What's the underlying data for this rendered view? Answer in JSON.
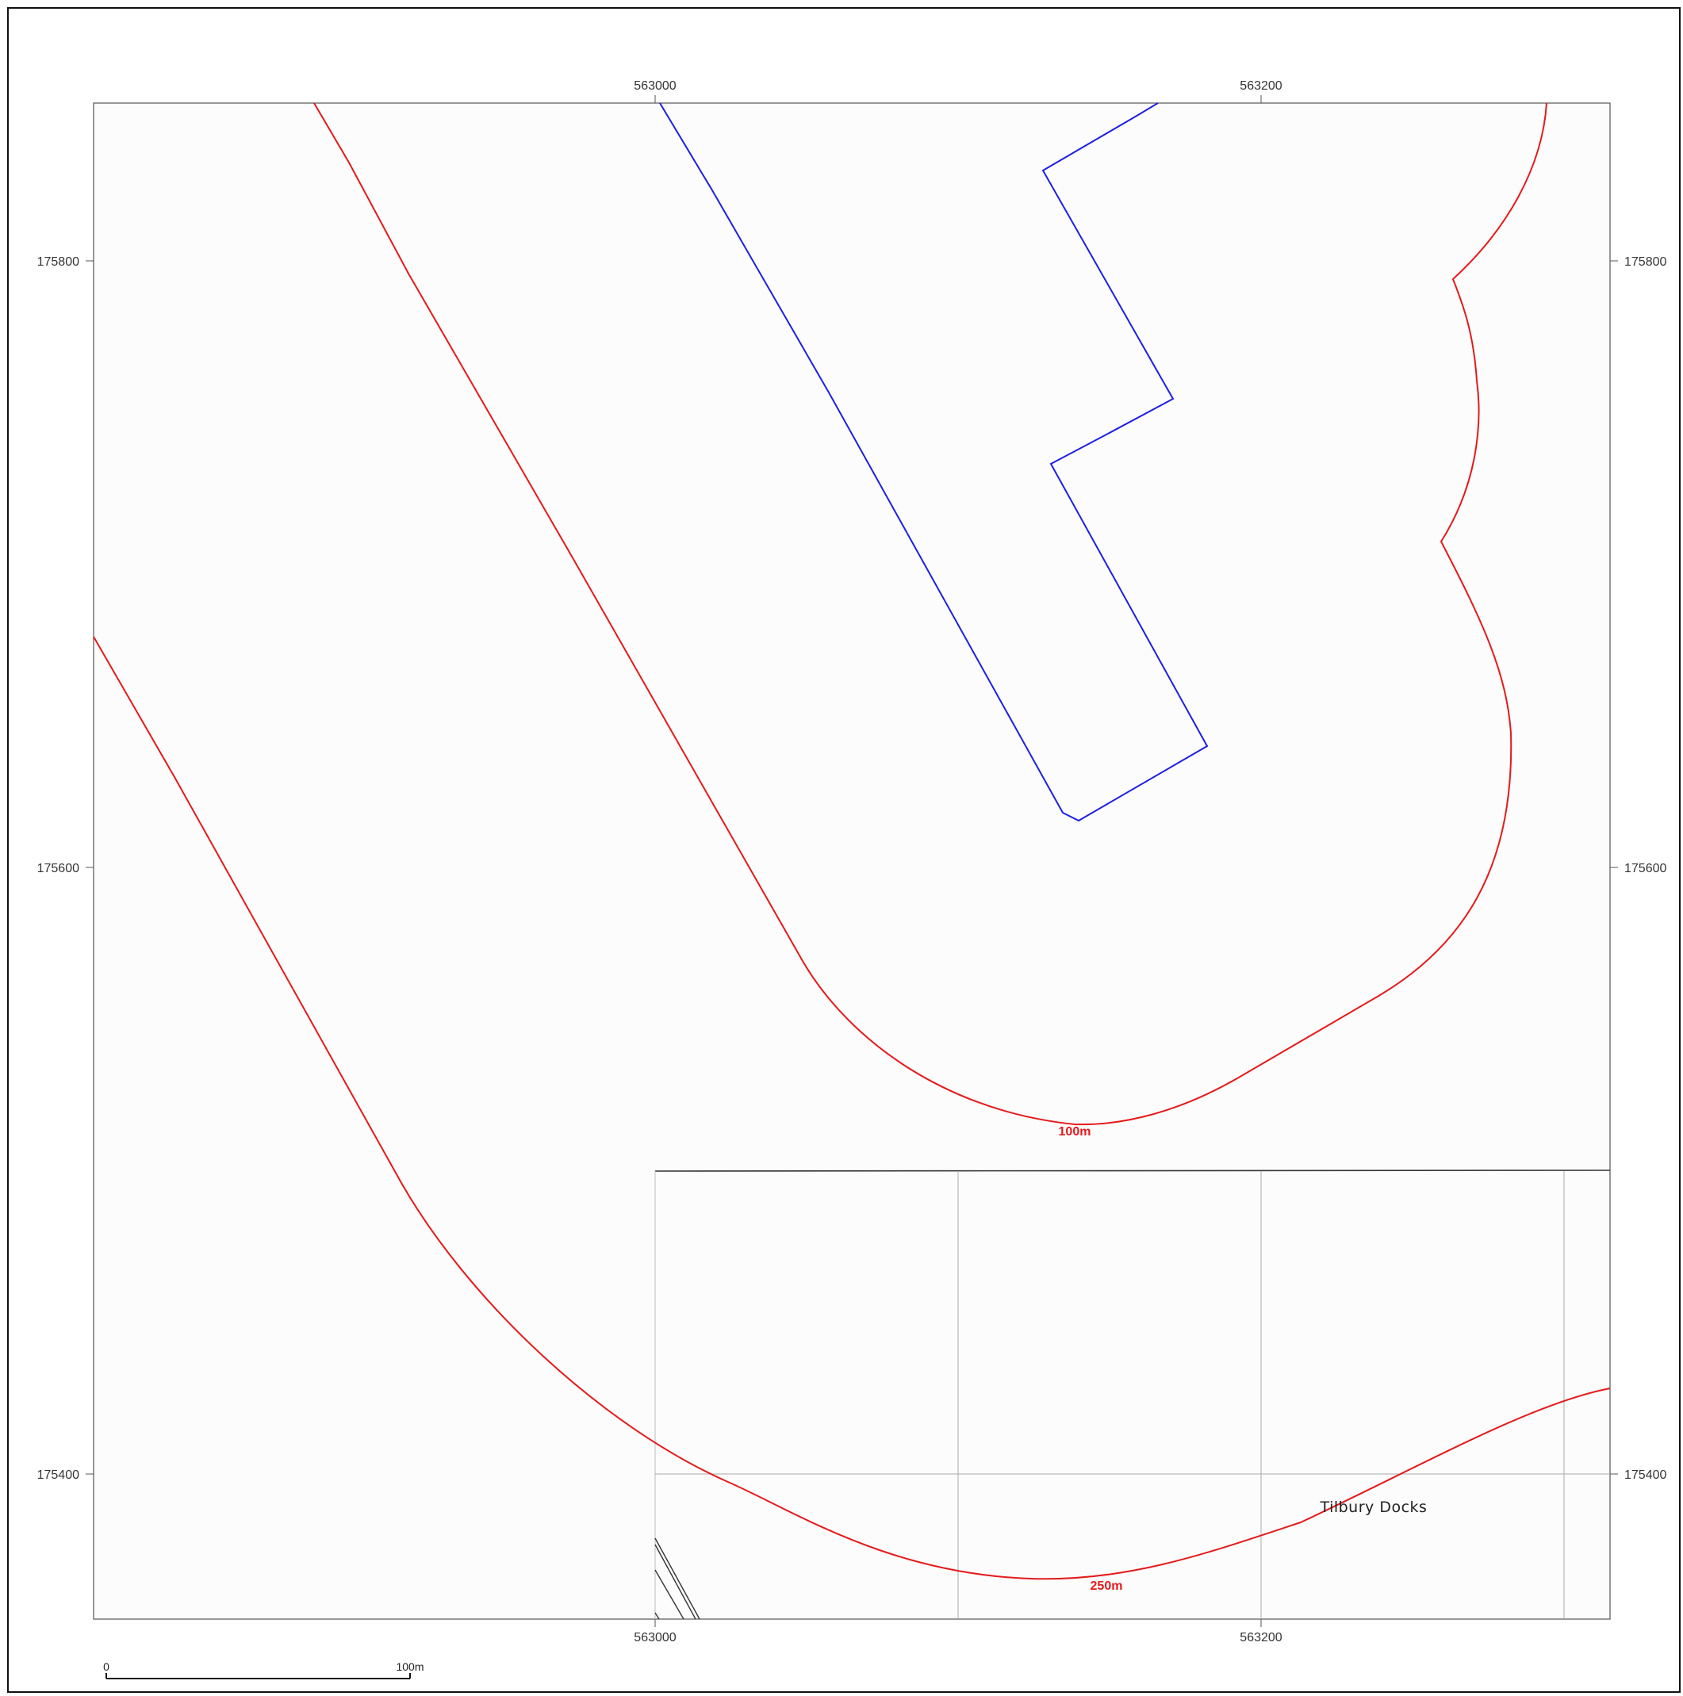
{
  "map": {
    "grid_labels": {
      "easting": [
        "563000",
        "563200"
      ],
      "northing": [
        "175800",
        "175600",
        "175400"
      ]
    },
    "buffers": [
      {
        "label": "100m",
        "color": "#e31a1c"
      },
      {
        "label": "250m",
        "color": "#e31a1c"
      }
    ],
    "site_boundary_color": "#1f1fe0",
    "place_name": "Tilbury Docks",
    "scale_bar": {
      "start": "0",
      "end": "100m"
    }
  }
}
